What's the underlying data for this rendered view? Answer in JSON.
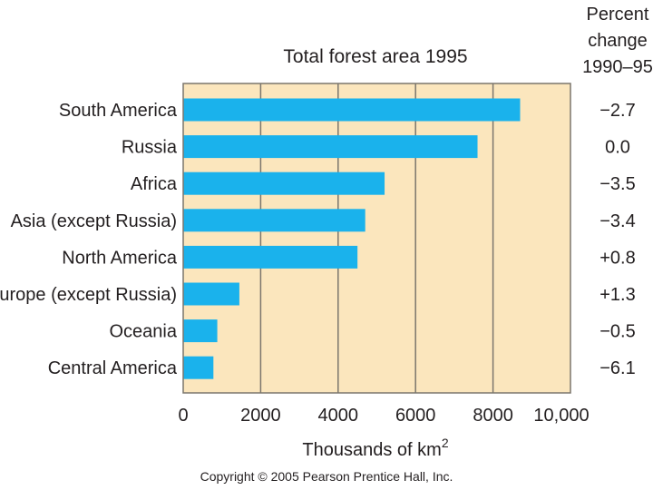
{
  "chart_data": {
    "type": "bar",
    "orientation": "horizontal",
    "title": "Total forest area 1995",
    "xlabel_prefix": "Thousands of km",
    "xlabel_superscript": "2",
    "categories": [
      "South America",
      "Russia",
      "Africa",
      "Asia (except Russia)",
      "North America",
      "Europe (except Russia)",
      "Oceania",
      "Central America"
    ],
    "values": [
      8700,
      7600,
      5200,
      4700,
      4500,
      1450,
      880,
      780
    ],
    "xlim": [
      0,
      10000
    ],
    "xticks": [
      "0",
      "2000",
      "4000",
      "6000",
      "8000",
      "10,000"
    ],
    "xtick_values": [
      0,
      2000,
      4000,
      6000,
      8000,
      10000
    ],
    "grid": true,
    "change_header": [
      "Percent",
      "change",
      "1990–95"
    ],
    "percent_change": [
      "−2.7",
      "0.0",
      "−3.5",
      "−3.4",
      "+0.8",
      "+1.3",
      "−0.5",
      "−6.1"
    ],
    "colors": {
      "bar": "#1ab2ec",
      "plot_background": "#fbe6bd",
      "grid": "#7b766d"
    }
  },
  "copyright": "Copyright © 2005 Pearson Prentice Hall, Inc."
}
